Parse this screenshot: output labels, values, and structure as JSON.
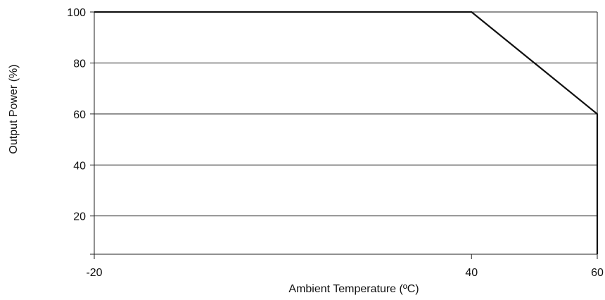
{
  "chart_data": {
    "type": "line",
    "title": "",
    "xlabel": "Ambient Temperature (ºC)",
    "ylabel": "Output Power (%)",
    "xlim": [
      -20,
      60
    ],
    "ylim": [
      5,
      100
    ],
    "x_ticks": [
      -20,
      40,
      60
    ],
    "x_tick_labels": [
      "-20",
      "40",
      "60"
    ],
    "y_ticks": [
      20,
      40,
      60,
      80,
      100
    ],
    "y_tick_labels": [
      "20",
      "40",
      "60",
      "80",
      "100"
    ],
    "grid": "horizontal",
    "series": [
      {
        "points": [
          {
            "x": -20,
            "y": 100
          },
          {
            "x": 40,
            "y": 100
          },
          {
            "x": 60,
            "y": 60
          },
          {
            "x": 60,
            "y": 5
          }
        ],
        "color": "#111111"
      }
    ]
  }
}
